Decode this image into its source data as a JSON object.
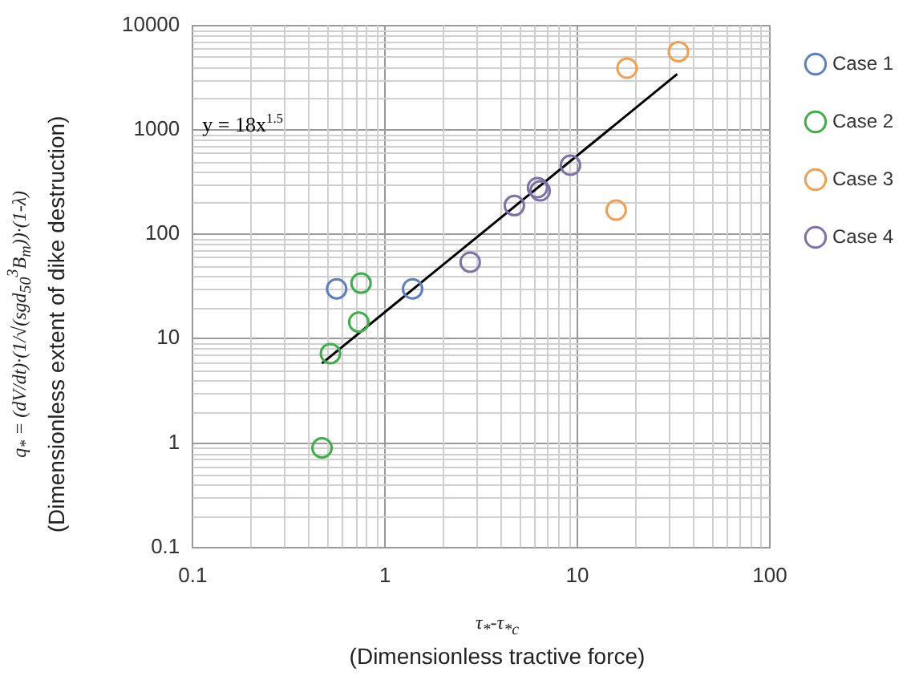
{
  "chart_data": {
    "type": "scatter",
    "xlabel": "τ$_{*}$-τ$_{*c}$\n(Dimensionless tractive force)",
    "ylabel": "q$_{*}$ = (dV/dt)·(1/√(sgd$_{50}$$^{3}$B$_{m}$))·(1-λ)\n(Dimensionless extent of dike destruction)",
    "annotations": [
      "y = 18x$^{1.5}$"
    ],
    "series": [
      {
        "name": "Case 1",
        "color": "#5b7fbf",
        "x": [
          0.56,
          1.39
        ],
        "values": [
          30,
          30
        ]
      },
      {
        "name": "Case 2",
        "color": "#3fae49",
        "x": [
          0.75,
          0.73,
          0.52,
          0.47
        ],
        "values": [
          34,
          14.4,
          7.2,
          0.9
        ]
      },
      {
        "name": "Case 3",
        "color": "#f0a050",
        "x": [
          18.1,
          33.5,
          15.9
        ],
        "values": [
          3890,
          5600,
          170
        ]
      },
      {
        "name": "Case 4",
        "color": "#8070a8",
        "x": [
          2.77,
          4.7,
          6.2,
          6.4,
          9.2
        ],
        "values": [
          54,
          188,
          279,
          260,
          458
        ]
      },
      {
        "type": "line",
        "marker": "none",
        "color": "#000000",
        "x": [
          0.47,
          33
        ],
        "values": [
          5.8,
          3412
        ]
      }
    ],
    "log": "xy",
    "xlim": [
      0.1,
      100
    ],
    "xticks": [
      0.1,
      1,
      10,
      100
    ],
    "ylim": [
      0.1,
      10000
    ],
    "yticks": [
      0.1,
      1,
      10,
      100,
      1000,
      10000
    ],
    "grid": true,
    "legend": "top right",
    "marker": "circle"
  }
}
